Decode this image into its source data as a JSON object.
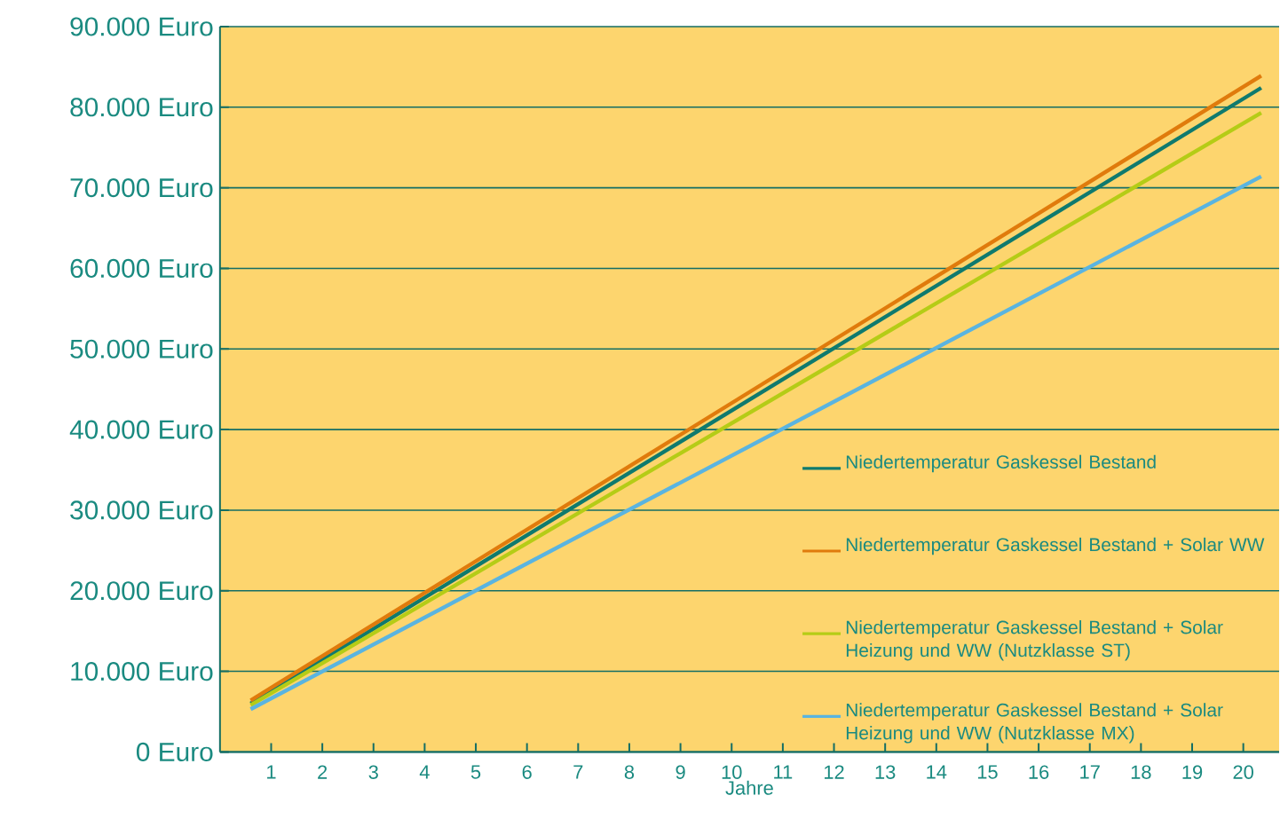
{
  "chart_data": {
    "type": "line",
    "xlabel": "Jahre",
    "xlim": [
      0,
      20.7
    ],
    "xticks": [
      1,
      2,
      3,
      4,
      5,
      6,
      7,
      8,
      9,
      10,
      11,
      12,
      13,
      14,
      15,
      16,
      17,
      18,
      19,
      20
    ],
    "ylim": [
      0,
      90000
    ],
    "yticks": [
      {
        "value": 0,
        "label": "0 Euro"
      },
      {
        "value": 10000,
        "label": "10.000 Euro"
      },
      {
        "value": 20000,
        "label": "20.000 Euro"
      },
      {
        "value": 30000,
        "label": "30.000 Euro"
      },
      {
        "value": 40000,
        "label": "40.000 Euro"
      },
      {
        "value": 50000,
        "label": "50.000 Euro"
      },
      {
        "value": 60000,
        "label": "60.000 Euro"
      },
      {
        "value": 70000,
        "label": "70.000 Euro"
      },
      {
        "value": 80000,
        "label": "80.000 Euro"
      },
      {
        "value": 90000,
        "label": "90.000 Euro"
      }
    ],
    "grid": "y",
    "x": [
      0.6,
      20.35
    ],
    "legend": "bottom right",
    "marker": "none",
    "line_style": "solid",
    "series": [
      {
        "name": "Niedertemperatur Gaskessel Bestand",
        "color": "#0f7a6e",
        "values": [
          6000,
          82400
        ]
      },
      {
        "name": "Niedertemperatur Gaskessel Bestand + Solar WW",
        "color": "#e07b0c",
        "values": [
          6400,
          83900
        ]
      },
      {
        "name": "Niedertemperatur Gaskessel Bestand + Solar Heizung und WW (Nutzklasse ST)",
        "color": "#b5cc16",
        "values": [
          5800,
          79300
        ]
      },
      {
        "name": "Niedertemperatur Gaskessel Bestand + Solar Heizung und WW (Nutzklasse MX)",
        "color": "#5ab4e0",
        "values": [
          5300,
          71400
        ]
      }
    ]
  }
}
